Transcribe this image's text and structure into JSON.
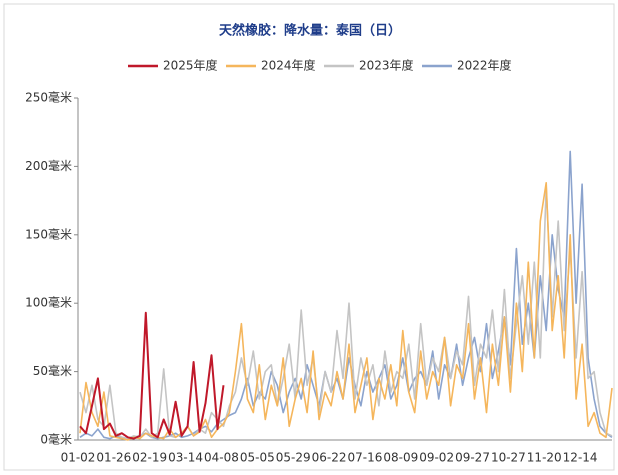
{
  "chart_data": {
    "type": "line",
    "title": "天然橡胶：降水量：泰国（日）",
    "categories": [
      "01-02",
      null,
      null,
      null,
      null,
      null,
      "01-26",
      null,
      null,
      null,
      null,
      null,
      "02-19",
      null,
      null,
      null,
      null,
      null,
      "03-14",
      null,
      null,
      null,
      null,
      null,
      "04-08",
      null,
      null,
      null,
      null,
      null,
      "05-05",
      null,
      null,
      null,
      null,
      null,
      "05-29",
      null,
      null,
      null,
      null,
      null,
      "06-22",
      null,
      null,
      null,
      null,
      null,
      "07-16",
      null,
      null,
      null,
      null,
      null,
      "08-09",
      null,
      null,
      null,
      null,
      null,
      "09-02",
      null,
      null,
      null,
      null,
      null,
      "09-27",
      null,
      null,
      null,
      null,
      null,
      "10-27",
      null,
      null,
      null,
      null,
      null,
      "11-20",
      null,
      null,
      null,
      null,
      null,
      "12-14",
      null,
      null,
      null,
      null,
      null
    ],
    "series": [
      {
        "name": "2025年度",
        "color": "#c0182a",
        "values": [
          10,
          5,
          25,
          45,
          8,
          12,
          3,
          5,
          2,
          1,
          3,
          93,
          5,
          2,
          15,
          4,
          28,
          3,
          10,
          57,
          6,
          27,
          62,
          8,
          40,
          null,
          null,
          null,
          null,
          null,
          null,
          null,
          null,
          null,
          null,
          null,
          null,
          null,
          null,
          null,
          null,
          null,
          null,
          null,
          null,
          null,
          null,
          null,
          null,
          null,
          null,
          null,
          null,
          null,
          null,
          null,
          null,
          null,
          null,
          null,
          null,
          null,
          null,
          null,
          null,
          null,
          null,
          null,
          null,
          null,
          null,
          null,
          null,
          null,
          null,
          null,
          null,
          null,
          null,
          null,
          null,
          null,
          null,
          null,
          null,
          null,
          null,
          null,
          null,
          null
        ]
      },
      {
        "name": "2024年度",
        "color": "#f5b65c",
        "values": [
          5,
          42,
          20,
          10,
          35,
          3,
          2,
          1,
          0,
          2,
          1,
          5,
          3,
          2,
          1,
          8,
          2,
          5,
          10,
          3,
          6,
          15,
          2,
          8,
          12,
          20,
          50,
          85,
          30,
          20,
          55,
          15,
          40,
          25,
          60,
          10,
          30,
          45,
          20,
          65,
          15,
          35,
          25,
          50,
          30,
          70,
          20,
          40,
          60,
          15,
          45,
          30,
          55,
          25,
          80,
          35,
          20,
          65,
          30,
          50,
          40,
          75,
          25,
          55,
          45,
          85,
          30,
          60,
          20,
          70,
          40,
          90,
          35,
          100,
          50,
          130,
          60,
          160,
          188,
          80,
          120,
          60,
          150,
          30,
          70,
          10,
          20,
          5,
          2,
          38
        ]
      },
      {
        "name": "2023年度",
        "color": "#c4c4c4",
        "values": [
          35,
          20,
          40,
          15,
          10,
          40,
          5,
          2,
          1,
          3,
          2,
          8,
          2,
          5,
          52,
          3,
          2,
          5,
          10,
          3,
          8,
          5,
          20,
          15,
          10,
          25,
          35,
          60,
          40,
          65,
          30,
          50,
          55,
          25,
          45,
          70,
          30,
          95,
          40,
          60,
          20,
          50,
          35,
          80,
          45,
          100,
          30,
          60,
          40,
          55,
          25,
          65,
          35,
          50,
          45,
          70,
          30,
          85,
          40,
          60,
          50,
          75,
          45,
          65,
          55,
          105,
          40,
          70,
          60,
          95,
          50,
          110,
          45,
          85,
          120,
          70,
          130,
          60,
          185,
          90,
          160,
          80,
          140,
          60,
          123,
          45,
          50,
          20,
          5,
          3
        ]
      },
      {
        "name": "2022年度",
        "color": "#8ba3cd",
        "values": [
          2,
          5,
          3,
          8,
          2,
          1,
          3,
          2,
          1,
          2,
          3,
          5,
          2,
          1,
          2,
          3,
          5,
          2,
          3,
          5,
          8,
          10,
          6,
          12,
          15,
          18,
          20,
          30,
          45,
          25,
          35,
          30,
          50,
          40,
          20,
          35,
          45,
          30,
          55,
          40,
          25,
          50,
          35,
          45,
          30,
          60,
          40,
          25,
          50,
          35,
          45,
          55,
          30,
          40,
          60,
          35,
          45,
          50,
          40,
          65,
          30,
          55,
          45,
          70,
          40,
          60,
          75,
          50,
          85,
          45,
          65,
          90,
          55,
          140,
          70,
          100,
          60,
          120,
          80,
          150,
          110,
          90,
          211,
          100,
          187,
          60,
          30,
          10,
          5,
          2
        ]
      }
    ],
    "ylim": [
      0,
      250
    ],
    "yticks": [
      {
        "value": 0,
        "label": "0毫米"
      },
      {
        "value": 50,
        "label": "50毫米"
      },
      {
        "value": 100,
        "label": "100毫米"
      },
      {
        "value": 150,
        "label": "150毫米"
      },
      {
        "value": 200,
        "label": "200毫米"
      },
      {
        "value": 250,
        "label": "250毫米"
      }
    ],
    "grid": false,
    "legend": "top"
  }
}
